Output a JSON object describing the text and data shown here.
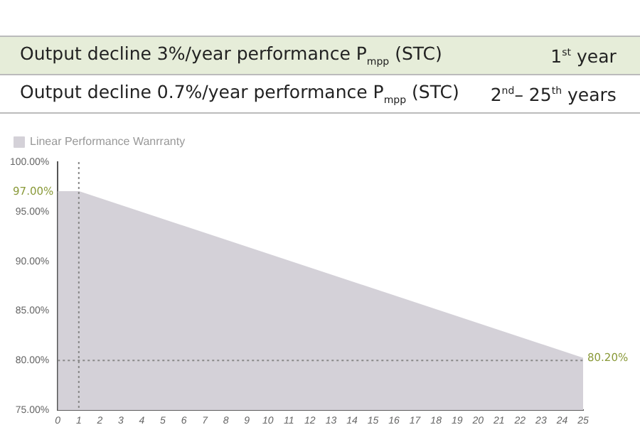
{
  "chart_data": {
    "type": "area",
    "xlabel": null,
    "annotations": [
      "Output decline 3%/year performance P$_{mpp}$ (STC)",
      "1$^{st}$ year",
      "Output decline 0.7%/year performance P$_{mpp}$ (STC)",
      "2$^{nd}$– 25$^{th}$ years",
      {
        "text": "97.00%",
        "x": 0,
        "y": 97
      },
      {
        "text": "80.20%",
        "x": 25,
        "y": 80.2
      }
    ],
    "series": [
      {
        "name": "Linear Performance Wanrranty",
        "color": "#d4d1d8",
        "x": [
          0,
          1,
          25
        ],
        "values": [
          97,
          97,
          80.2
        ]
      }
    ],
    "xlim": [
      0,
      25
    ],
    "xticks": [
      0,
      1,
      2,
      3,
      4,
      5,
      6,
      7,
      8,
      9,
      10,
      11,
      12,
      13,
      14,
      15,
      16,
      17,
      18,
      19,
      20,
      21,
      22,
      23,
      24,
      25
    ],
    "ylim": [
      75,
      100
    ],
    "yticks": [
      {
        "value": 75,
        "label": "75.00%"
      },
      {
        "value": 80,
        "label": "80.00%"
      },
      {
        "value": 85,
        "label": "85.00%"
      },
      {
        "value": 90,
        "label": "90.00%"
      },
      {
        "value": 95,
        "label": "95.00%"
      },
      {
        "value": 100,
        "label": "100.00%"
      }
    ],
    "ref_lines": [
      {
        "axis": "y",
        "value": 80,
        "color": "#888888",
        "line_style": "dotted"
      },
      {
        "axis": "x",
        "value": 1,
        "color": "#888888",
        "line_style": "dotted"
      }
    ],
    "grid": false,
    "legend": "top left"
  }
}
